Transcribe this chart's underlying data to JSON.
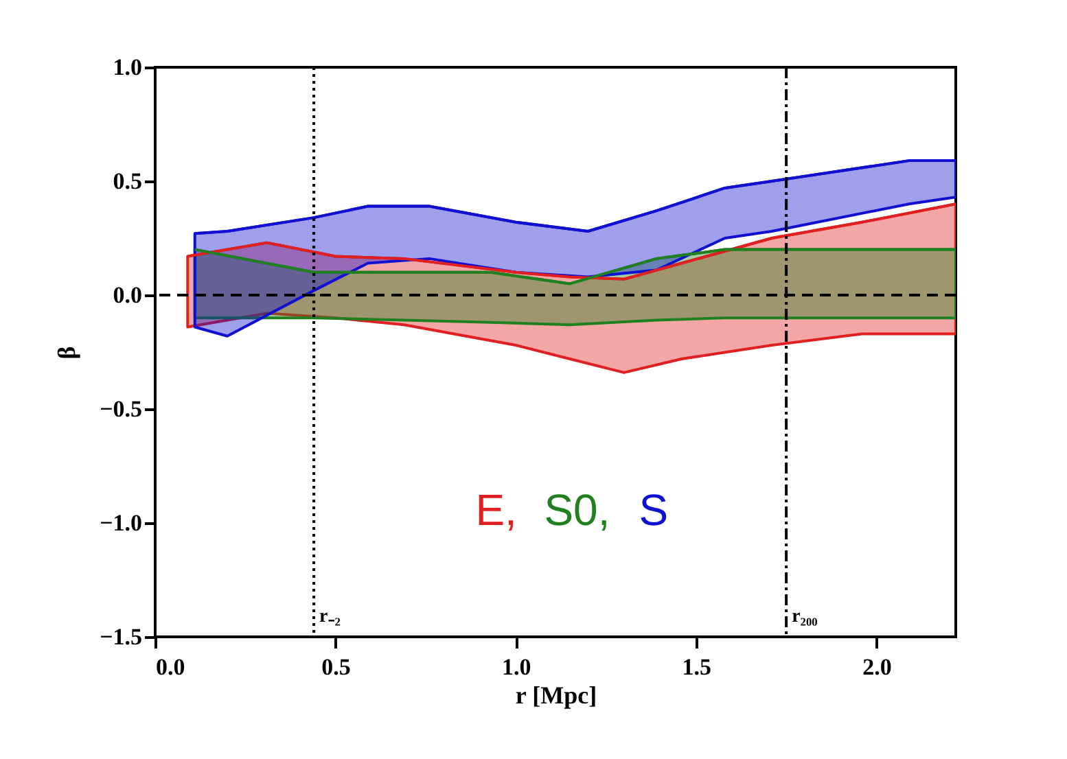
{
  "chart_data": {
    "type": "line",
    "xlabel": "r [Mpc]",
    "ylabel": "β",
    "xlim": [
      0,
      2.22
    ],
    "ylim": [
      -1.5,
      1.0
    ],
    "xticks": [
      {
        "value": 0,
        "label": "0.0"
      },
      {
        "value": 0.5,
        "label": "0.5"
      },
      {
        "value": 1,
        "label": "1.0"
      },
      {
        "value": 1.5,
        "label": "1.5"
      },
      {
        "value": 2,
        "label": "2.0"
      }
    ],
    "yticks": [
      {
        "value": -1.5,
        "label": "−1.5"
      },
      {
        "value": -1,
        "label": "−1.0"
      },
      {
        "value": -0.5,
        "label": "−0.5"
      },
      {
        "value": 0,
        "label": "0.0"
      },
      {
        "value": 0.5,
        "label": "0.5"
      },
      {
        "value": 1,
        "label": "1.0"
      }
    ],
    "grid": false,
    "legend": "bottom",
    "series": [
      {
        "name": "E,",
        "color": "#e02020",
        "x": [
          0.09,
          0.31,
          0.5,
          0.69,
          1.0,
          1.15,
          1.3,
          1.46,
          1.71,
          1.96,
          2.22
        ],
        "values": [
          0.17,
          0.23,
          0.17,
          0.16,
          0.1,
          0.08,
          0.07,
          0.14,
          0.25,
          0.32,
          0.4
        ],
        "lower": [
          -0.14,
          -0.08,
          -0.1,
          -0.13,
          -0.22,
          -0.28,
          -0.34,
          -0.28,
          -0.22,
          -0.17,
          -0.17
        ],
        "upper": [
          0.17,
          0.23,
          0.17,
          0.16,
          0.1,
          0.08,
          0.07,
          0.14,
          0.25,
          0.32,
          0.4
        ]
      },
      {
        "name": "S0,",
        "color": "#208020",
        "x": [
          0.11,
          0.44,
          0.69,
          0.93,
          1.15,
          1.39,
          1.58,
          2.22
        ],
        "values": [
          0.2,
          0.1,
          0.1,
          0.1,
          0.05,
          0.16,
          0.2,
          0.2
        ],
        "lower": [
          -0.1,
          -0.1,
          -0.11,
          -0.12,
          -0.13,
          -0.11,
          -0.1,
          -0.1
        ],
        "upper": [
          0.2,
          0.1,
          0.1,
          0.1,
          0.05,
          0.16,
          0.2,
          0.2
        ]
      },
      {
        "name": "S",
        "color": "#1010d0",
        "x": [
          0.11,
          0.2,
          0.44,
          0.59,
          0.76,
          1.0,
          1.2,
          1.39,
          1.58,
          1.71,
          2.09,
          2.22
        ],
        "values": [
          0.27,
          0.28,
          0.34,
          0.39,
          0.39,
          0.32,
          0.28,
          0.37,
          0.47,
          0.5,
          0.59,
          0.59
        ],
        "lower": [
          -0.14,
          -0.18,
          0.02,
          0.14,
          0.16,
          0.1,
          0.08,
          0.11,
          0.25,
          0.28,
          0.4,
          0.43
        ],
        "upper": [
          0.27,
          0.28,
          0.34,
          0.39,
          0.39,
          0.32,
          0.28,
          0.37,
          0.47,
          0.5,
          0.59,
          0.59
        ]
      }
    ],
    "ref_lines": [
      {
        "axis": "y",
        "value": 0,
        "label": null,
        "line_style": "dashed",
        "color": "#000000"
      },
      {
        "axis": "x",
        "value": 0.44,
        "label": "r₋₂",
        "line_style": "dotted",
        "color": "#000000"
      },
      {
        "axis": "x",
        "value": 1.75,
        "label": "r₂₀₀",
        "line_style": "dashdot",
        "color": "#000000"
      }
    ]
  }
}
